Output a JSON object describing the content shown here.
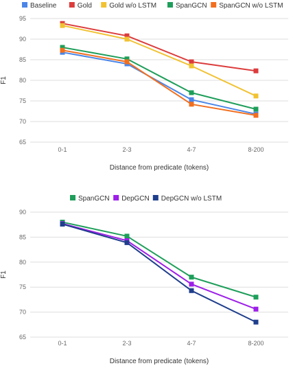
{
  "chart_data": [
    {
      "type": "line",
      "categories": [
        "0-1",
        "2-3",
        "4-7",
        "8-200"
      ],
      "xlabel": "Distance from predicate (tokens)",
      "ylabel": "F1",
      "ylim": [
        65,
        95
      ],
      "yticks": [
        65,
        70,
        75,
        80,
        85,
        90,
        95
      ],
      "grid": true,
      "legend_position": "top",
      "series": [
        {
          "name": "Baseline",
          "color": "#4a86e8",
          "values": [
            86.8,
            84.0,
            75.3,
            71.8
          ]
        },
        {
          "name": "Gold",
          "color": "#dc3c3c",
          "values": [
            93.8,
            90.8,
            84.5,
            82.3
          ]
        },
        {
          "name": "Gold w/o LSTM",
          "color": "#f1c232",
          "values": [
            93.3,
            90.0,
            83.5,
            76.2
          ]
        },
        {
          "name": "SpanGCN",
          "color": "#1e9e5a",
          "values": [
            88.0,
            85.2,
            77.0,
            73.0
          ]
        },
        {
          "name": "SpanGCN w/o LSTM",
          "color": "#f16f1f",
          "values": [
            87.3,
            84.5,
            74.2,
            71.5
          ]
        }
      ]
    },
    {
      "type": "line",
      "categories": [
        "0-1",
        "2-3",
        "4-7",
        "8-200"
      ],
      "xlabel": "Distance from predicate (tokens)",
      "ylabel": "F1",
      "ylim": [
        65,
        90
      ],
      "yticks": [
        65,
        70,
        75,
        80,
        85,
        90
      ],
      "grid": true,
      "legend_position": "top",
      "series": [
        {
          "name": "SpanGCN",
          "color": "#1e9e5a",
          "values": [
            88.0,
            85.2,
            77.0,
            73.0
          ]
        },
        {
          "name": "DepGCN",
          "color": "#9d1fe8",
          "values": [
            87.7,
            84.3,
            75.6,
            70.6
          ]
        },
        {
          "name": "DepGCN w/o LSTM",
          "color": "#1f3e8c",
          "values": [
            87.6,
            83.9,
            74.3,
            68.0
          ]
        }
      ]
    }
  ]
}
